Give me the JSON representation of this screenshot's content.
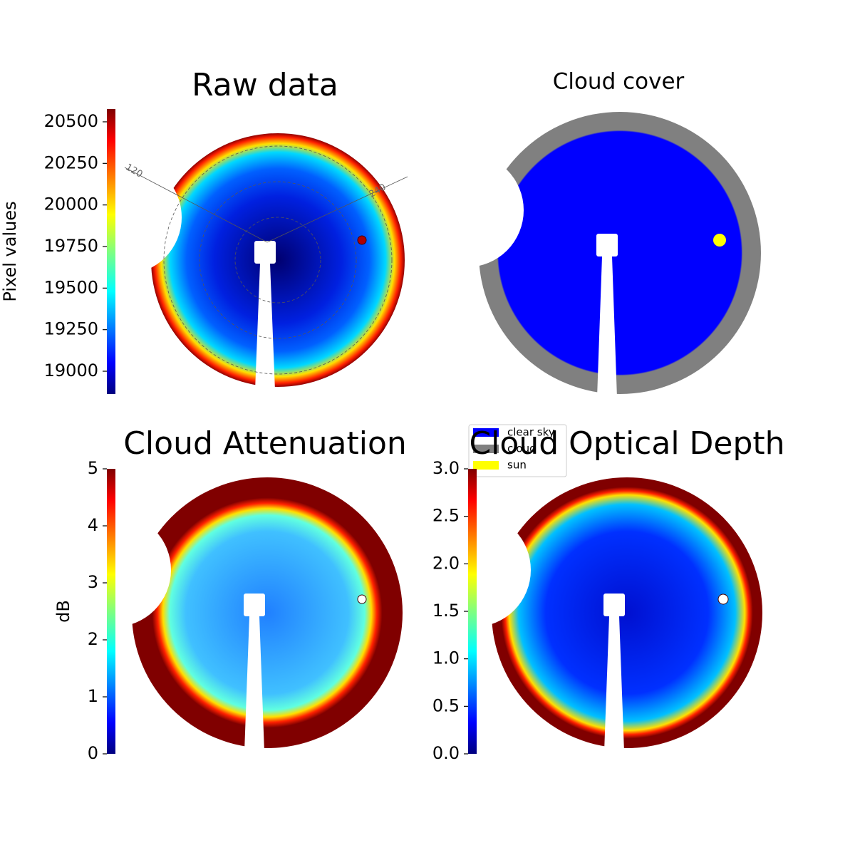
{
  "chart_data": [
    {
      "type": "image",
      "title": "Raw data",
      "colorbar_label": "Pixel values",
      "ylim": [
        18863,
        20577
      ],
      "yticks": [
        19000,
        19250,
        19500,
        19750,
        20000,
        20250,
        20500
      ],
      "annotations": [
        "120",
        "240"
      ]
    },
    {
      "type": "image",
      "title": "Cloud cover",
      "series": [
        {
          "name": "clear sky",
          "color": "#0000ff"
        },
        {
          "name": "cloud",
          "color": "#808080"
        },
        {
          "name": "sun",
          "color": "#ffff00"
        }
      ]
    },
    {
      "type": "image",
      "title": "Cloud Attenuation",
      "colorbar_label": "dB",
      "ylim": [
        0,
        5
      ],
      "yticks": [
        0,
        1,
        2,
        3,
        4,
        5
      ]
    },
    {
      "type": "image",
      "title": "Cloud Optical Depth",
      "ylim": [
        0,
        3
      ],
      "yticks": [
        {
          "value": 0,
          "label": "0.0"
        },
        0.5,
        {
          "value": 1,
          "label": "1.0"
        },
        1.5,
        {
          "value": 2,
          "label": "2.0"
        },
        2.5,
        {
          "value": 3,
          "label": "3.0"
        }
      ]
    }
  ]
}
